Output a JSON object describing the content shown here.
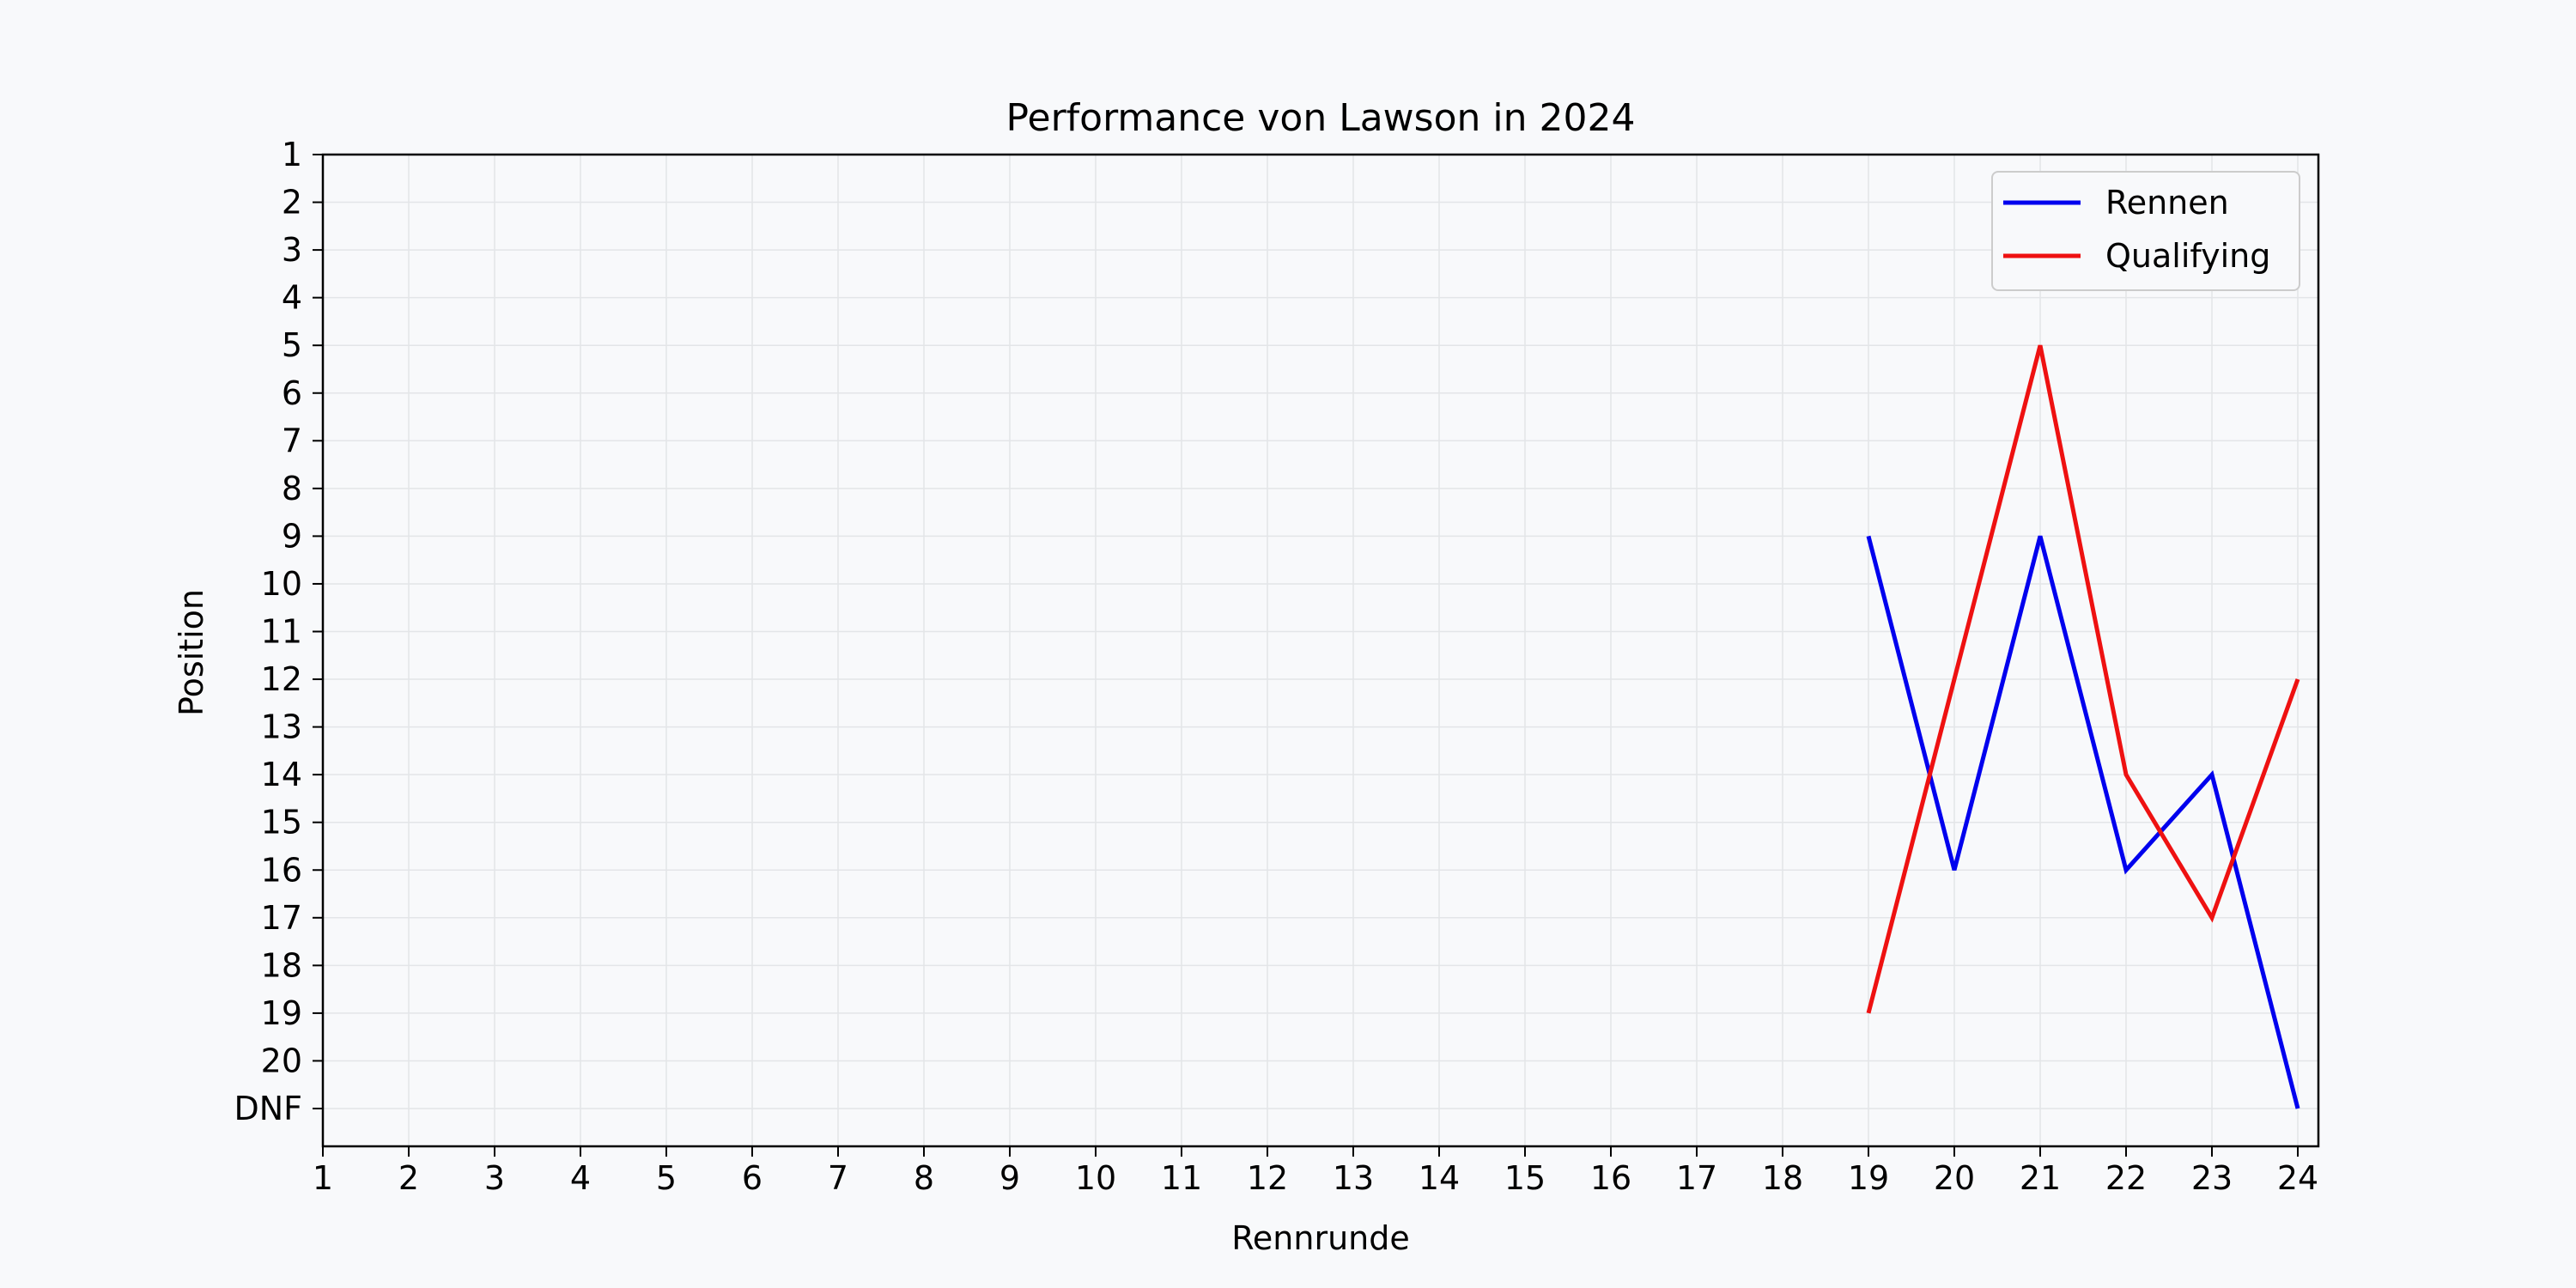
{
  "chart_data": {
    "type": "line",
    "title": "Performance von Lawson in 2024",
    "xlabel": "Rennrunde",
    "ylabel": "Position",
    "x": [
      19,
      20,
      21,
      22,
      23,
      24
    ],
    "xlim": [
      1,
      24
    ],
    "xticks": [
      "1",
      "2",
      "3",
      "4",
      "5",
      "6",
      "7",
      "8",
      "9",
      "10",
      "11",
      "12",
      "13",
      "14",
      "15",
      "16",
      "17",
      "18",
      "19",
      "20",
      "21",
      "22",
      "23",
      "24"
    ],
    "ylim": [
      1,
      21
    ],
    "y_inverted": true,
    "yticks": [
      "1",
      "2",
      "3",
      "4",
      "5",
      "6",
      "7",
      "8",
      "9",
      "10",
      "11",
      "12",
      "13",
      "14",
      "15",
      "16",
      "17",
      "18",
      "19",
      "20",
      "DNF"
    ],
    "grid": true,
    "legend_position": "top-right",
    "series": [
      {
        "name": "Rennen",
        "color": "#0000ee",
        "values": [
          9,
          16,
          9,
          16,
          14,
          "DNF"
        ]
      },
      {
        "name": "Qualifying",
        "color": "#ee1111",
        "values": [
          19,
          12,
          5,
          14,
          17,
          12
        ]
      }
    ]
  }
}
